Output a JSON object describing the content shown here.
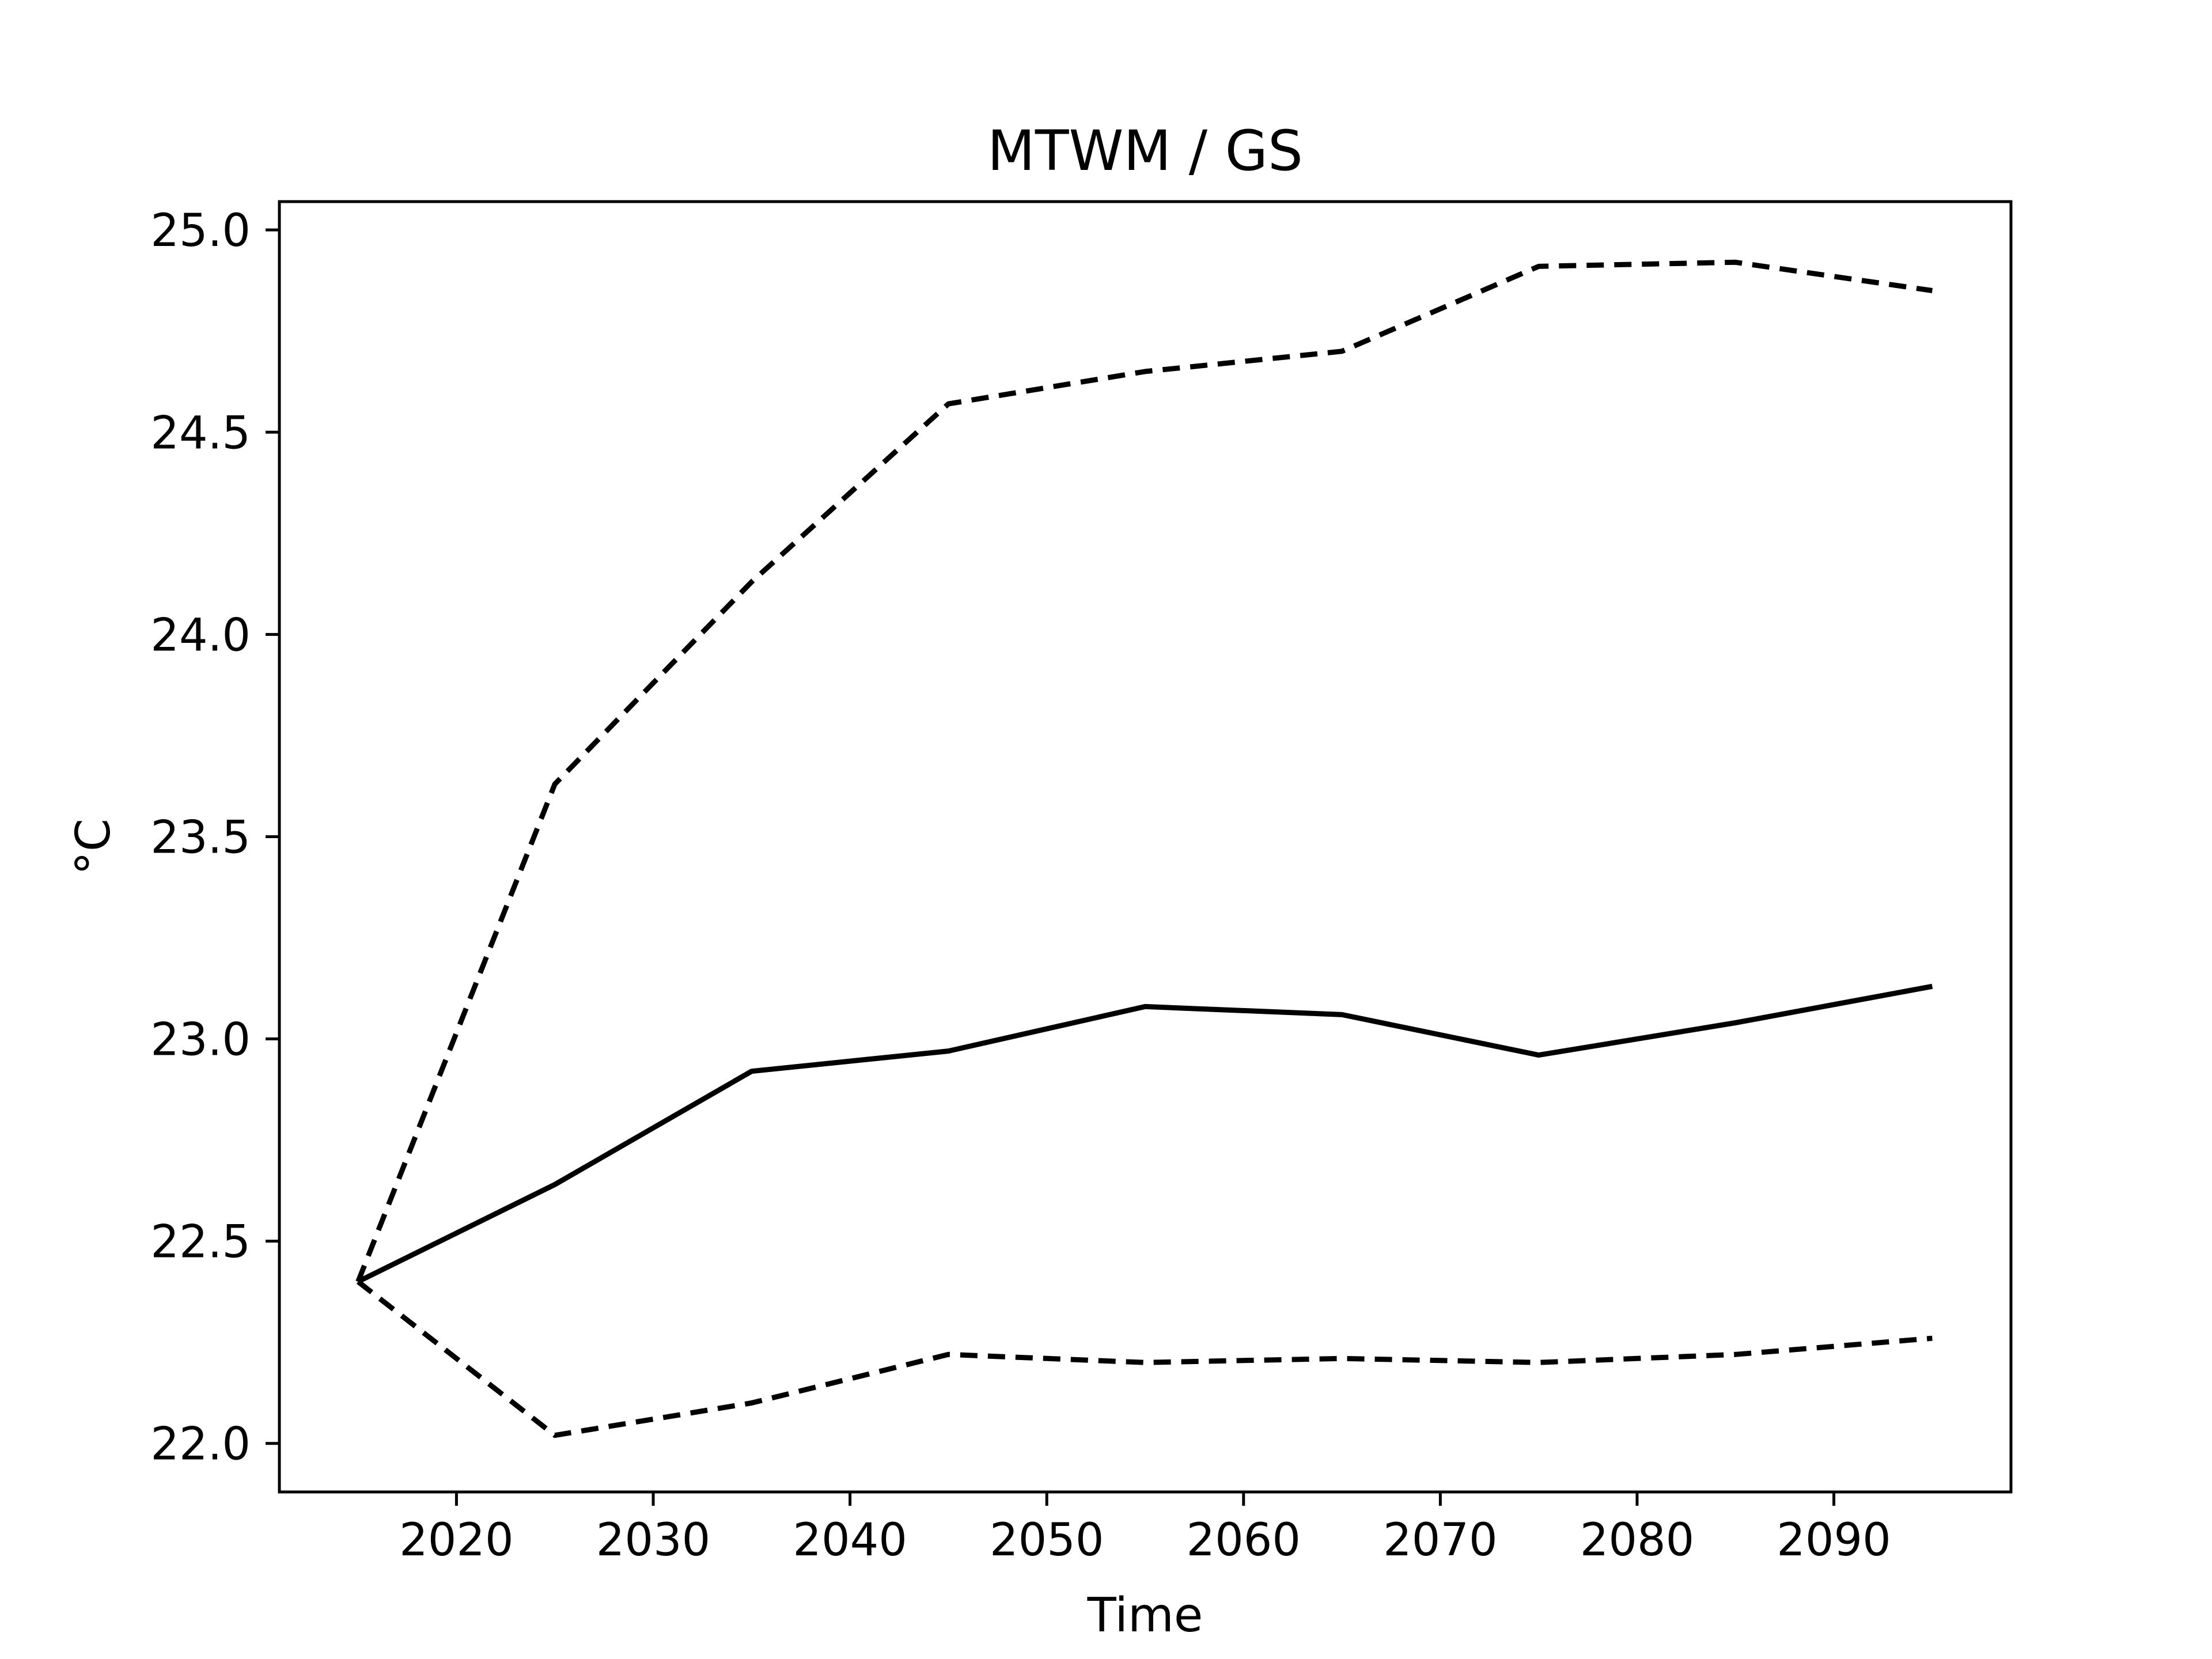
{
  "chart_data": {
    "type": "line",
    "title": "MTWM / GS",
    "xlabel": "Time",
    "ylabel": "°C",
    "x": [
      2015,
      2025,
      2035,
      2045,
      2055,
      2065,
      2075,
      2085,
      2095
    ],
    "xlim": [
      2011,
      2099
    ],
    "ylim": [
      21.88,
      25.07
    ],
    "xticks": [
      "2020",
      "2030",
      "2040",
      "2050",
      "2060",
      "2070",
      "2080",
      "2090"
    ],
    "yticks": [
      "22.0",
      "22.5",
      "23.0",
      "23.5",
      "24.0",
      "24.5",
      "25.0"
    ],
    "grid": false,
    "series": [
      {
        "style": "solid",
        "color": "#000000",
        "values": [
          22.4,
          22.64,
          22.92,
          22.97,
          23.08,
          23.06,
          22.96,
          23.04,
          23.13
        ]
      },
      {
        "style": "dashed",
        "color": "#000000",
        "values": [
          22.4,
          23.63,
          24.13,
          24.57,
          24.65,
          24.7,
          24.91,
          24.92,
          24.85
        ]
      },
      {
        "style": "dashed",
        "color": "#000000",
        "values": [
          22.4,
          22.02,
          22.1,
          22.22,
          22.2,
          22.21,
          22.2,
          22.22,
          22.26
        ]
      }
    ]
  }
}
